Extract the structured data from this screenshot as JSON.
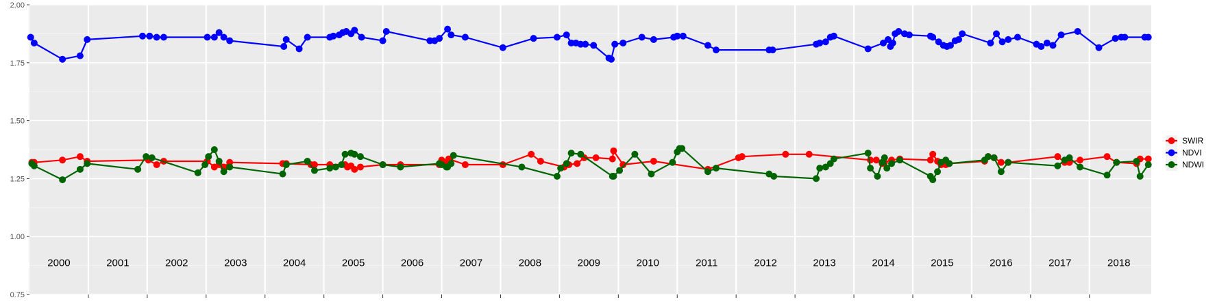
{
  "chart_data": {
    "type": "line",
    "x_unit": "year",
    "ylim": [
      0.75,
      2.0
    ],
    "y_ticks": [
      "0.75",
      "1.00",
      "1.25",
      "1.50",
      "1.75",
      "2.00"
    ],
    "y_tick_values": [
      0.75,
      1.0,
      1.25,
      1.5,
      1.75,
      2.0
    ],
    "year_labels": [
      "2000",
      "2001",
      "2002",
      "2003",
      "2004",
      "2005",
      "2006",
      "2007",
      "2008",
      "2009",
      "2010",
      "2011",
      "2012",
      "2013",
      "2014",
      "2015",
      "2016",
      "2017",
      "2018"
    ],
    "year_boundaries": [
      2001,
      2002,
      2003,
      2004,
      2005,
      2006,
      2007,
      2008,
      2009,
      2010,
      2011,
      2012,
      2013,
      2014,
      2015,
      2016,
      2017,
      2018
    ],
    "grid": true,
    "legend_position": "right",
    "series": [
      {
        "name": "SWIR",
        "color": "#ff0000",
        "x": [
          2000.04,
          2000.08,
          2000.56,
          2000.86,
          2000.98,
          2002.02,
          2002.16,
          2002.28,
          2003.02,
          2003.14,
          2003.22,
          2003.3,
          2003.4,
          2004.3,
          2004.36,
          2004.78,
          2004.84,
          2005.1,
          2005.36,
          2005.4,
          2005.46,
          2005.52,
          2005.62,
          2006.0,
          2006.3,
          2006.96,
          2007.0,
          2007.08,
          2007.1,
          2007.12,
          2007.4,
          2008.04,
          2008.52,
          2008.68,
          2009.08,
          2009.16,
          2009.3,
          2009.42,
          2009.62,
          2009.9,
          2009.92,
          2010.08,
          2010.6,
          2011.52,
          2012.04,
          2012.1,
          2012.84,
          2013.24,
          2014.28,
          2014.38,
          2014.48,
          2014.52,
          2014.64,
          2014.78,
          2015.3,
          2015.34,
          2015.42,
          2015.48,
          2015.56,
          2015.62,
          2016.22,
          2016.28,
          2016.38,
          2016.5,
          2016.62,
          2017.46,
          2017.58,
          2017.66,
          2017.84,
          2018.3,
          2018.46,
          2018.8,
          2018.86,
          2019.0
        ],
        "values": [
          1.32,
          1.32,
          1.33,
          1.345,
          1.325,
          1.33,
          1.31,
          1.325,
          1.325,
          1.3,
          1.31,
          1.3,
          1.32,
          1.315,
          1.315,
          1.31,
          1.31,
          1.31,
          1.31,
          1.3,
          1.305,
          1.29,
          1.3,
          1.31,
          1.31,
          1.31,
          1.33,
          1.32,
          1.315,
          1.335,
          1.31,
          1.31,
          1.355,
          1.325,
          1.3,
          1.31,
          1.315,
          1.34,
          1.34,
          1.335,
          1.37,
          1.31,
          1.325,
          1.29,
          1.34,
          1.345,
          1.355,
          1.355,
          1.33,
          1.33,
          1.315,
          1.32,
          1.33,
          1.335,
          1.33,
          1.355,
          1.325,
          1.31,
          1.31,
          1.315,
          1.325,
          1.345,
          1.34,
          1.32,
          1.32,
          1.345,
          1.32,
          1.32,
          1.33,
          1.345,
          1.32,
          1.315,
          1.335,
          1.335
        ]
      },
      {
        "name": "NDVI",
        "color": "#0000ff",
        "x": [
          2000.02,
          2000.08,
          2000.56,
          2000.86,
          2000.98,
          2001.92,
          2002.04,
          2002.16,
          2002.28,
          2003.02,
          2003.14,
          2003.22,
          2003.3,
          2003.4,
          2004.32,
          2004.36,
          2004.58,
          2004.72,
          2005.1,
          2005.16,
          2005.26,
          2005.32,
          2005.38,
          2005.46,
          2005.52,
          2005.64,
          2006.0,
          2006.06,
          2006.8,
          2006.88,
          2006.96,
          2007.1,
          2007.16,
          2007.4,
          2008.04,
          2008.56,
          2008.96,
          2009.12,
          2009.2,
          2009.28,
          2009.36,
          2009.44,
          2009.58,
          2009.84,
          2009.88,
          2009.94,
          2010.08,
          2010.4,
          2010.6,
          2010.94,
          2011.0,
          2011.1,
          2011.52,
          2011.66,
          2012.56,
          2012.62,
          2013.36,
          2013.42,
          2013.52,
          2013.6,
          2013.66,
          2014.24,
          2014.5,
          2014.58,
          2014.62,
          2014.66,
          2014.7,
          2014.76,
          2014.86,
          2014.94,
          2015.3,
          2015.34,
          2015.44,
          2015.52,
          2015.58,
          2015.64,
          2015.72,
          2015.78,
          2015.84,
          2016.32,
          2016.42,
          2016.52,
          2016.62,
          2016.78,
          2017.1,
          2017.18,
          2017.28,
          2017.38,
          2017.52,
          2017.8,
          2018.16,
          2018.44,
          2018.54,
          2018.6,
          2018.94,
          2019.0
        ],
        "values": [
          1.86,
          1.835,
          1.765,
          1.78,
          1.85,
          1.865,
          1.865,
          1.86,
          1.86,
          1.86,
          1.86,
          1.88,
          1.86,
          1.845,
          1.82,
          1.85,
          1.81,
          1.86,
          1.86,
          1.865,
          1.87,
          1.88,
          1.885,
          1.875,
          1.89,
          1.86,
          1.845,
          1.885,
          1.845,
          1.845,
          1.855,
          1.895,
          1.87,
          1.86,
          1.815,
          1.855,
          1.86,
          1.87,
          1.835,
          1.835,
          1.83,
          1.83,
          1.825,
          1.77,
          1.765,
          1.83,
          1.835,
          1.86,
          1.85,
          1.86,
          1.865,
          1.865,
          1.825,
          1.805,
          1.805,
          1.805,
          1.83,
          1.835,
          1.84,
          1.86,
          1.865,
          1.81,
          1.835,
          1.85,
          1.82,
          1.835,
          1.875,
          1.885,
          1.875,
          1.87,
          1.865,
          1.86,
          1.84,
          1.825,
          1.82,
          1.825,
          1.845,
          1.85,
          1.875,
          1.835,
          1.875,
          1.84,
          1.85,
          1.86,
          1.83,
          1.82,
          1.835,
          1.825,
          1.87,
          1.885,
          1.815,
          1.855,
          1.86,
          1.86,
          1.86,
          1.86
        ],
        "_note": ""
      },
      {
        "name": "NDWI",
        "color": "#006400",
        "x": [
          2000.04,
          2000.08,
          2000.56,
          2000.86,
          2000.98,
          2001.84,
          2001.98,
          2002.08,
          2002.86,
          2002.98,
          2003.04,
          2003.14,
          2003.22,
          2003.3,
          2003.4,
          2004.3,
          2004.36,
          2004.72,
          2004.84,
          2005.1,
          2005.2,
          2005.3,
          2005.36,
          2005.46,
          2005.52,
          2005.62,
          2006.0,
          2006.3,
          2006.96,
          2007.0,
          2007.08,
          2007.1,
          2007.16,
          2007.2,
          2008.36,
          2008.96,
          2009.02,
          2009.12,
          2009.2,
          2009.36,
          2009.9,
          2009.92,
          2010.02,
          2010.28,
          2010.56,
          2010.92,
          2011.0,
          2011.04,
          2011.08,
          2011.52,
          2011.66,
          2012.56,
          2012.64,
          2013.36,
          2013.42,
          2013.52,
          2013.6,
          2013.66,
          2014.24,
          2014.28,
          2014.4,
          2014.48,
          2014.52,
          2014.56,
          2014.64,
          2014.78,
          2015.3,
          2015.34,
          2015.42,
          2015.48,
          2015.56,
          2015.62,
          2016.22,
          2016.28,
          2016.38,
          2016.5,
          2016.62,
          2017.46,
          2017.58,
          2017.66,
          2017.84,
          2018.3,
          2018.46,
          2018.8,
          2018.86,
          2019.0
        ],
        "values": [
          1.315,
          1.305,
          1.245,
          1.29,
          1.315,
          1.29,
          1.345,
          1.34,
          1.275,
          1.31,
          1.345,
          1.375,
          1.325,
          1.28,
          1.3,
          1.27,
          1.31,
          1.325,
          1.285,
          1.295,
          1.3,
          1.31,
          1.355,
          1.36,
          1.355,
          1.345,
          1.31,
          1.3,
          1.315,
          1.31,
          1.3,
          1.3,
          1.315,
          1.35,
          1.3,
          1.26,
          1.295,
          1.315,
          1.36,
          1.355,
          1.26,
          1.26,
          1.285,
          1.355,
          1.27,
          1.32,
          1.365,
          1.38,
          1.38,
          1.28,
          1.295,
          1.27,
          1.26,
          1.25,
          1.295,
          1.3,
          1.315,
          1.335,
          1.36,
          1.295,
          1.26,
          1.32,
          1.34,
          1.295,
          1.315,
          1.33,
          1.26,
          1.245,
          1.28,
          1.32,
          1.33,
          1.315,
          1.33,
          1.345,
          1.34,
          1.28,
          1.32,
          1.305,
          1.33,
          1.34,
          1.3,
          1.265,
          1.32,
          1.325,
          1.26,
          1.31
        ]
      }
    ]
  }
}
